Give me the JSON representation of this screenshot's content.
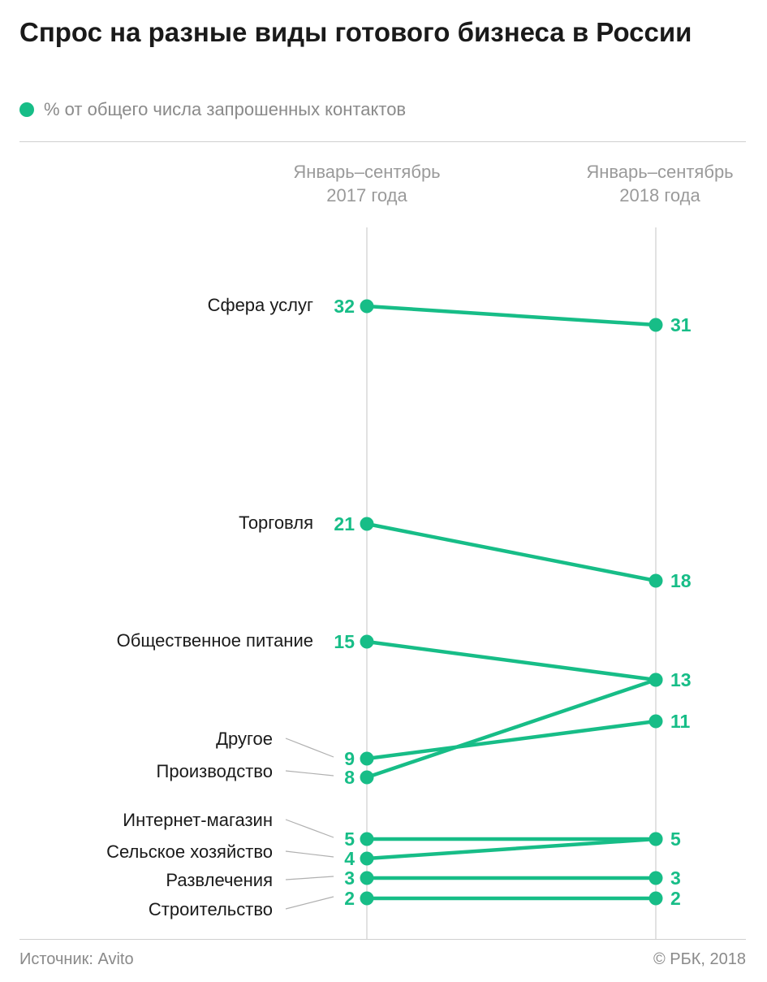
{
  "header": {
    "title": "Спрос на разные виды готового бизнеса в России",
    "legend_label": "% от общего числа запрошенных контактов"
  },
  "footer": {
    "source": "Источник: Avito",
    "copyright": "© РБК, 2018"
  },
  "colors": {
    "accent": "#17bd87",
    "guide_line": "#d8d8d8",
    "connector": "#b0b0b0",
    "text": "#1a1a1a",
    "muted": "#9a9a9a"
  },
  "chart_data": {
    "type": "slope",
    "columns": [
      [
        "Январь–сентябрь",
        "2017 года"
      ],
      [
        "Январь–сентябрь",
        "2018 года"
      ]
    ],
    "series": [
      {
        "name": "Сфера услуг",
        "values": [
          32,
          31
        ]
      },
      {
        "name": "Торговля",
        "values": [
          21,
          18
        ]
      },
      {
        "name": "Общественное питание",
        "values": [
          15,
          13
        ]
      },
      {
        "name": "Другое",
        "values": [
          9,
          11
        ]
      },
      {
        "name": "Производство",
        "values": [
          8,
          13
        ]
      },
      {
        "name": "Интернет-магазин",
        "values": [
          5,
          5
        ]
      },
      {
        "name": "Сельское хозяйство",
        "values": [
          4,
          5
        ]
      },
      {
        "name": "Развлечения",
        "values": [
          3,
          3
        ]
      },
      {
        "name": "Строительство",
        "values": [
          2,
          2
        ]
      }
    ],
    "ylim": [
      0,
      32
    ],
    "grid": false
  }
}
